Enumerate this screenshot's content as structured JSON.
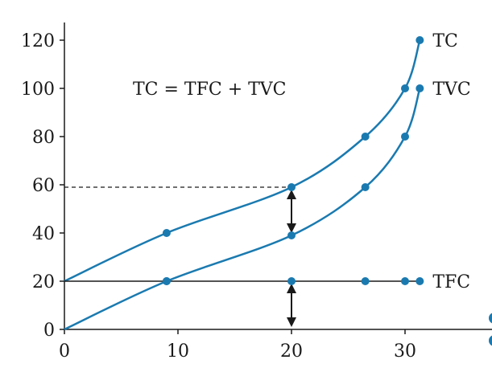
{
  "chart_data": {
    "type": "line",
    "title": "",
    "xlabel": "",
    "ylabel": "",
    "xlim": [
      0,
      37
    ],
    "ylim": [
      0,
      130
    ],
    "x_ticks": [
      "0",
      "10",
      "20",
      "30"
    ],
    "y_ticks": [
      "0",
      "20",
      "40",
      "60",
      "80",
      "100",
      "120"
    ],
    "annotation": "TC = TFC + TVC",
    "grid": false,
    "series": [
      {
        "name": "TC",
        "points": [
          [
            0,
            20
          ],
          [
            9,
            40
          ],
          [
            20,
            59
          ],
          [
            26.5,
            80
          ],
          [
            30,
            100
          ],
          [
            31.3,
            120
          ]
        ],
        "markers": [
          [
            9,
            40
          ],
          [
            20,
            59
          ],
          [
            26.5,
            80
          ],
          [
            30,
            100
          ],
          [
            31.3,
            120
          ]
        ],
        "color": "#1a7ab0"
      },
      {
        "name": "TVC",
        "points": [
          [
            0,
            0
          ],
          [
            9,
            20
          ],
          [
            20,
            39
          ],
          [
            26.5,
            59
          ],
          [
            30,
            80
          ],
          [
            31.3,
            100
          ]
        ],
        "markers": [
          [
            9,
            20
          ],
          [
            20,
            39
          ],
          [
            26.5,
            59
          ],
          [
            30,
            80
          ],
          [
            31.3,
            100
          ]
        ],
        "color": "#1a7ab0"
      },
      {
        "name": "TFC",
        "points": [
          [
            0,
            20
          ],
          [
            31.3,
            20
          ]
        ],
        "markers": [
          [
            9,
            20
          ],
          [
            20,
            20
          ],
          [
            26.5,
            20
          ],
          [
            30,
            20
          ],
          [
            31.3,
            20
          ]
        ],
        "color": "#1a1a1a",
        "marker_color": "#1a7ab0"
      }
    ],
    "reference_line": {
      "x": 20,
      "y": 59
    },
    "arrows": [
      {
        "x": 20,
        "from": 59,
        "to": 39
      },
      {
        "x": 20,
        "from": 20,
        "to": 0
      }
    ]
  }
}
